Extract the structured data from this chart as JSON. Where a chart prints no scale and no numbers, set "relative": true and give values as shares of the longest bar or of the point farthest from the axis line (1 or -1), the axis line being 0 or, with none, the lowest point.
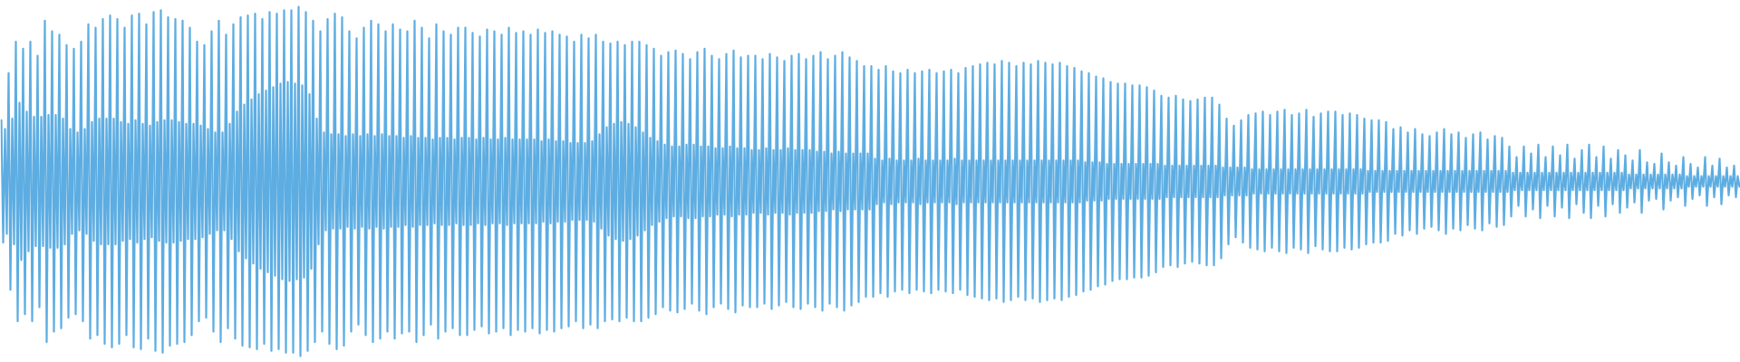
{
  "chart_data": {
    "type": "line",
    "relative": true,
    "color": "#5dade2",
    "categories": [
      null,
      null,
      null,
      null,
      null,
      null,
      null,
      null,
      null,
      null,
      null,
      null,
      null,
      null,
      null,
      null,
      null,
      null,
      null,
      null,
      null,
      null,
      null,
      null,
      null,
      null,
      null,
      null,
      null,
      null,
      null,
      null,
      null,
      null,
      null,
      null,
      null,
      null,
      null,
      null,
      null,
      null,
      null,
      null,
      null,
      null,
      null,
      null,
      null,
      null,
      null,
      null,
      null,
      null,
      null,
      null,
      null,
      null,
      null,
      null,
      null,
      null,
      null,
      null,
      null,
      null,
      null,
      null,
      null,
      null,
      null,
      null,
      null,
      null,
      null,
      null,
      null,
      null,
      null,
      null,
      null,
      null,
      null,
      null,
      null,
      null,
      null,
      null,
      null,
      null,
      null,
      null,
      null,
      null,
      null,
      null,
      null,
      null,
      null,
      null,
      null,
      null,
      null,
      null,
      null,
      null,
      null,
      null,
      null,
      null,
      null,
      null,
      null,
      null,
      null,
      null,
      null,
      null,
      null,
      null,
      null,
      null,
      null,
      null,
      null,
      null,
      null,
      null,
      null,
      null,
      null,
      null,
      null,
      null,
      null,
      null,
      null,
      null,
      null,
      null,
      null,
      null,
      null,
      null,
      null,
      null,
      null,
      null,
      null,
      null,
      null,
      null,
      null,
      null,
      null,
      null,
      null,
      null,
      null,
      null,
      null,
      null,
      null,
      null,
      null,
      null,
      null,
      null,
      null,
      null,
      null,
      null,
      null,
      null,
      null,
      null,
      null,
      null,
      null,
      null,
      null,
      null,
      null,
      null,
      null,
      null,
      null,
      null,
      null,
      null,
      null,
      null,
      null,
      null,
      null,
      null,
      null,
      null,
      null,
      null,
      null,
      null,
      null,
      null,
      null,
      null,
      null,
      null,
      null,
      null,
      null,
      null,
      null,
      null,
      null,
      null,
      null,
      null,
      null,
      null,
      null,
      null,
      null,
      null,
      null,
      null,
      null,
      null,
      null,
      null,
      null,
      null,
      null,
      null,
      null,
      null,
      null,
      null,
      null,
      null,
      null,
      null,
      null,
      null,
      null,
      null,
      null,
      null,
      null,
      null,
      null,
      null,
      null,
      null,
      null,
      null,
      null,
      null,
      null,
      null,
      null,
      null,
      null,
      null,
      null,
      null,
      null,
      null,
      null,
      null,
      null,
      null,
      null,
      null,
      null,
      null,
      null,
      null,
      null,
      null,
      null,
      null,
      null,
      null,
      null,
      null,
      null,
      null,
      null,
      null,
      null,
      null,
      null,
      null,
      null,
      null,
      null,
      null,
      null,
      null,
      null,
      null,
      null,
      null,
      null,
      null,
      null,
      null,
      null,
      null,
      null,
      null,
      null,
      null,
      null,
      null,
      null,
      null,
      null,
      null,
      null,
      null,
      null,
      null,
      null,
      null,
      null,
      null,
      null,
      null,
      null,
      null,
      null,
      null,
      null,
      null,
      null,
      null,
      null,
      null,
      null,
      null,
      null,
      null,
      null,
      null,
      null,
      null,
      null,
      null,
      null,
      null,
      null,
      null,
      null,
      null,
      null,
      null,
      null,
      null,
      null,
      null,
      null,
      null,
      null,
      null,
      null,
      null,
      null,
      null,
      null,
      null,
      null,
      null,
      null,
      null,
      null,
      null,
      null,
      null,
      null,
      null,
      null,
      null,
      null,
      null,
      null,
      null,
      null,
      null,
      null,
      null,
      null,
      null,
      null,
      null,
      null,
      null,
      null,
      null,
      null,
      null,
      null,
      null,
      null,
      null,
      null,
      null,
      null,
      null,
      null,
      null,
      null,
      null,
      null,
      null,
      null,
      null,
      null,
      null,
      null,
      null,
      null,
      null,
      null,
      null,
      null,
      null,
      null,
      null,
      null,
      null,
      null,
      null,
      null,
      null,
      null,
      null,
      null,
      null,
      null,
      null,
      null,
      null,
      null,
      null,
      null,
      null,
      null,
      null,
      null,
      null,
      null,
      null,
      null,
      null,
      null,
      null,
      null,
      null,
      null,
      null,
      null,
      null,
      null,
      null,
      null,
      null,
      null,
      null,
      null,
      null,
      null,
      null,
      null,
      null,
      null,
      null,
      null,
      null,
      null,
      null,
      null,
      null,
      null,
      null,
      null,
      null,
      null,
      null,
      null,
      null,
      null,
      null,
      null,
      null,
      null,
      null,
      null,
      null,
      null,
      null,
      null,
      null,
      null,
      null,
      null,
      null,
      null,
      null,
      null,
      null,
      null,
      null,
      null,
      null,
      null,
      null,
      null,
      null,
      null,
      null,
      null,
      null,
      null,
      null,
      null,
      null,
      null,
      null,
      null,
      null,
      null,
      null,
      null,
      null,
      null,
      null,
      null,
      null,
      null,
      null,
      null,
      null,
      null,
      null,
      null,
      null,
      null,
      null,
      null,
      null,
      null,
      null,
      null,
      null,
      null,
      null,
      null,
      null,
      null,
      null,
      null,
      null,
      null,
      null,
      null,
      null,
      null,
      null,
      null,
      null,
      null,
      null,
      null,
      null,
      null,
      null,
      null,
      null,
      null,
      null,
      null,
      null,
      null,
      null,
      null,
      null,
      null,
      null,
      null,
      null,
      null,
      null,
      null,
      null,
      null,
      null,
      null,
      null,
      null,
      null,
      null,
      null,
      null,
      null,
      null,
      null,
      null,
      null,
      null,
      null,
      null,
      null,
      null,
      null,
      null,
      null,
      null,
      null,
      null,
      null,
      null,
      null,
      null,
      null,
      null,
      null,
      null,
      null,
      null,
      null,
      null,
      null,
      null,
      null,
      null,
      null,
      null,
      null,
      null,
      null,
      null,
      null,
      null,
      null,
      null,
      null,
      null,
      null,
      null,
      null,
      null,
      null,
      null,
      null,
      null,
      null,
      null,
      null,
      null,
      null,
      null,
      null,
      null,
      null,
      null,
      null,
      null,
      null,
      null,
      null,
      null,
      null,
      null,
      null,
      null,
      null,
      null,
      null,
      null,
      null,
      null,
      null,
      null,
      null,
      null,
      null,
      null,
      null,
      null,
      null,
      null,
      null,
      null,
      null,
      null,
      null,
      null,
      null,
      null,
      null,
      null,
      null,
      null,
      null,
      null,
      null,
      null,
      null,
      null,
      null,
      null,
      null,
      null,
      null,
      null,
      null,
      null,
      null,
      null,
      null,
      null,
      null,
      null,
      null,
      null,
      null,
      null,
      null,
      null,
      null,
      null,
      null,
      null,
      null,
      null,
      null,
      null,
      null,
      null,
      null,
      null,
      null,
      null,
      null,
      null,
      null,
      null,
      null,
      null,
      null,
      null,
      null,
      null,
      null,
      null,
      null,
      null,
      null,
      null,
      null,
      null,
      null,
      null,
      null,
      null,
      null,
      null,
      null,
      null,
      null,
      null,
      null,
      null,
      null,
      null,
      null,
      null,
      null,
      null,
      null,
      null,
      null,
      null,
      null,
      null,
      null,
      null,
      null,
      null,
      null,
      null,
      null,
      null,
      null,
      null,
      null,
      null,
      null,
      null,
      null,
      null,
      null,
      null,
      null,
      null,
      null,
      null,
      null,
      null,
      null,
      null,
      null,
      null,
      null,
      null,
      null,
      null,
      null,
      null,
      null,
      null,
      null,
      null,
      null,
      null,
      null,
      null,
      null,
      null,
      null,
      null,
      null,
      null,
      null,
      null,
      null,
      null,
      null,
      null,
      null,
      null,
      null,
      null,
      null,
      null,
      null,
      null,
      null,
      null,
      null,
      null,
      null,
      null,
      null,
      null,
      null,
      null,
      null,
      null,
      null,
      null,
      null,
      null,
      null,
      null,
      null,
      null,
      null,
      null,
      null,
      null,
      null,
      null,
      null,
      null,
      null,
      null,
      null,
      null,
      null,
      null,
      null,
      null,
      null,
      null,
      null,
      null,
      null,
      null,
      null,
      null,
      null,
      null,
      null,
      null,
      null,
      null,
      null,
      null,
      null,
      null,
      null,
      null,
      null,
      null,
      null,
      null,
      null,
      null,
      null,
      null,
      null,
      null,
      null,
      null,
      null,
      null,
      null,
      null,
      null,
      null,
      null,
      null,
      null,
      null,
      null,
      null,
      null,
      null,
      null,
      null,
      null,
      null,
      null,
      null,
      null,
      null,
      null,
      null,
      null,
      null,
      null,
      null,
      null,
      null,
      null,
      null,
      null,
      null,
      null,
      null,
      null,
      null,
      null,
      null,
      null,
      null,
      null
    ],
    "values": [
      0.675,
      0.325,
      0.65,
      0.35,
      0.81,
      0.19,
      0.68,
      0.32,
      0.9,
      0.1,
      0.725,
      0.275,
      0.88,
      0.12,
      0.7,
      0.3,
      0.9,
      0.1,
      0.685,
      0.315,
      0.86,
      0.14,
      0.685,
      0.315,
      0.96,
      0.04,
      0.69,
      0.31,
      0.93,
      0.07,
      0.69,
      0.31,
      0.92,
      0.08,
      0.68,
      0.32,
      0.89,
      0.11,
      0.65,
      0.35,
      0.88,
      0.12,
      0.64,
      0.36,
      0.9,
      0.1,
      0.65,
      0.35,
      0.95,
      0.05,
      0.67,
      0.33,
      0.94,
      0.06,
      0.68,
      0.32,
      0.965,
      0.035,
      0.68,
      0.32,
      0.975,
      0.025,
      0.68,
      0.32,
      0.965,
      0.035,
      0.67,
      0.33,
      0.94,
      0.06,
      0.665,
      0.335,
      0.975,
      0.025,
      0.675,
      0.325,
      0.98,
      0.02,
      0.665,
      0.335,
      0.95,
      0.05,
      0.66,
      0.34,
      0.985,
      0.015,
      0.67,
      0.33,
      0.99,
      0.01,
      0.675,
      0.325,
      0.97,
      0.03,
      0.675,
      0.325,
      0.965,
      0.035,
      0.67,
      0.33,
      0.96,
      0.04,
      0.665,
      0.335,
      0.94,
      0.06,
      0.665,
      0.335,
      0.9,
      0.1,
      0.66,
      0.34,
      0.89,
      0.11,
      0.65,
      0.35,
      0.93,
      0.07,
      0.64,
      0.36,
      0.96,
      0.04,
      0.64,
      0.36,
      0.92,
      0.08,
      0.665,
      0.335,
      0.95,
      0.05,
      0.7,
      0.3,
      0.97,
      0.03,
      0.72,
      0.28,
      0.975,
      0.025,
      0.735,
      0.265,
      0.98,
      0.02,
      0.75,
      0.25,
      0.965,
      0.035,
      0.76,
      0.24,
      0.985,
      0.015,
      0.77,
      0.23,
      0.98,
      0.02,
      0.78,
      0.22,
      0.99,
      0.01,
      0.785,
      0.215,
      0.99,
      0.01,
      0.78,
      0.22,
      1,
      0,
      0.775,
      0.225,
      0.985,
      0.015,
      0.75,
      0.25,
      0.96,
      0.04,
      0.68,
      0.32,
      0.93,
      0.07,
      0.64,
      0.36,
      0.965,
      0.035,
      0.635,
      0.365,
      0.98,
      0.02,
      0.635,
      0.365,
      0.97,
      0.03,
      0.63,
      0.37,
      0.93,
      0.07,
      0.635,
      0.365,
      0.91,
      0.09,
      0.63,
      0.37,
      0.94,
      0.06,
      0.635,
      0.365,
      0.96,
      0.04,
      0.63,
      0.37,
      0.95,
      0.05,
      0.635,
      0.365,
      0.93,
      0.07,
      0.63,
      0.37,
      0.95,
      0.05,
      0.63,
      0.37,
      0.935,
      0.065,
      0.625,
      0.375,
      0.93,
      0.07,
      0.63,
      0.37,
      0.96,
      0.04,
      0.625,
      0.375,
      0.94,
      0.06,
      0.625,
      0.375,
      0.91,
      0.09,
      0.62,
      0.38,
      0.95,
      0.05,
      0.625,
      0.375,
      0.93,
      0.07,
      0.625,
      0.375,
      0.92,
      0.08,
      0.62,
      0.38,
      0.94,
      0.06,
      0.625,
      0.375,
      0.94,
      0.06,
      0.625,
      0.375,
      0.925,
      0.075,
      0.62,
      0.38,
      0.915,
      0.085,
      0.625,
      0.375,
      0.935,
      0.065,
      0.62,
      0.38,
      0.93,
      0.07,
      0.62,
      0.38,
      0.92,
      0.08,
      0.625,
      0.375,
      0.94,
      0.06,
      0.62,
      0.38,
      0.925,
      0.075,
      0.62,
      0.38,
      0.93,
      0.07,
      0.62,
      0.38,
      0.92,
      0.08,
      0.62,
      0.38,
      0.935,
      0.065,
      0.615,
      0.385,
      0.925,
      0.075,
      0.62,
      0.38,
      0.93,
      0.07,
      0.615,
      0.385,
      0.92,
      0.08,
      0.615,
      0.385,
      0.915,
      0.085,
      0.61,
      0.39,
      0.9,
      0.1,
      0.61,
      0.39,
      0.92,
      0.08,
      0.61,
      0.39,
      0.91,
      0.09,
      0.615,
      0.385,
      0.92,
      0.08,
      0.635,
      0.365,
      0.9,
      0.1,
      0.655,
      0.345,
      0.895,
      0.105,
      0.665,
      0.335,
      0.9,
      0.1,
      0.67,
      0.33,
      0.89,
      0.11,
      0.665,
      0.335,
      0.9,
      0.1,
      0.655,
      0.345,
      0.9,
      0.1,
      0.64,
      0.36,
      0.89,
      0.11,
      0.625,
      0.375,
      0.88,
      0.12,
      0.615,
      0.385,
      0.86,
      0.14,
      0.605,
      0.395,
      0.87,
      0.13,
      0.6,
      0.4,
      0.875,
      0.125,
      0.6,
      0.4,
      0.865,
      0.135,
      0.605,
      0.395,
      0.85,
      0.15,
      0.605,
      0.395,
      0.87,
      0.13,
      0.6,
      0.4,
      0.88,
      0.12,
      0.6,
      0.4,
      0.86,
      0.14,
      0.595,
      0.405,
      0.85,
      0.15,
      0.595,
      0.405,
      0.865,
      0.135,
      0.6,
      0.4,
      0.875,
      0.125,
      0.595,
      0.405,
      0.855,
      0.145,
      0.595,
      0.405,
      0.86,
      0.14,
      0.59,
      0.41,
      0.86,
      0.14,
      0.59,
      0.41,
      0.85,
      0.15,
      0.595,
      0.405,
      0.865,
      0.135,
      0.59,
      0.41,
      0.855,
      0.145,
      0.59,
      0.41,
      0.845,
      0.155,
      0.595,
      0.405,
      0.86,
      0.14,
      0.59,
      0.41,
      0.865,
      0.135,
      0.59,
      0.41,
      0.85,
      0.15,
      0.59,
      0.41,
      0.86,
      0.14,
      0.585,
      0.415,
      0.87,
      0.13,
      0.585,
      0.415,
      0.85,
      0.15,
      0.58,
      0.42,
      0.86,
      0.14,
      0.585,
      0.415,
      0.87,
      0.13,
      0.58,
      0.42,
      0.855,
      0.145,
      0.58,
      0.42,
      0.845,
      0.155,
      0.58,
      0.42,
      0.83,
      0.17,
      0.58,
      0.42,
      0.83,
      0.17,
      0.565,
      0.435,
      0.82,
      0.18,
      0.56,
      0.44,
      0.83,
      0.17,
      0.565,
      0.435,
      0.815,
      0.185,
      0.56,
      0.44,
      0.81,
      0.19,
      0.56,
      0.44,
      0.82,
      0.18,
      0.56,
      0.44,
      0.81,
      0.19,
      0.565,
      0.435,
      0.815,
      0.185,
      0.56,
      0.44,
      0.82,
      0.18,
      0.56,
      0.44,
      0.81,
      0.19,
      0.56,
      0.44,
      0.815,
      0.185,
      0.56,
      0.44,
      0.82,
      0.18,
      0.565,
      0.435,
      0.81,
      0.19,
      0.56,
      0.44,
      0.825,
      0.175,
      0.56,
      0.44,
      0.83,
      0.17,
      0.56,
      0.44,
      0.835,
      0.165,
      0.56,
      0.44,
      0.84,
      0.16,
      0.56,
      0.44,
      0.835,
      0.165,
      0.56,
      0.44,
      0.845,
      0.155,
      0.56,
      0.44,
      0.84,
      0.16,
      0.56,
      0.44,
      0.83,
      0.17,
      0.56,
      0.44,
      0.84,
      0.16,
      0.56,
      0.44,
      0.835,
      0.165,
      0.56,
      0.44,
      0.845,
      0.155,
      0.56,
      0.44,
      0.84,
      0.16,
      0.56,
      0.44,
      0.835,
      0.165,
      0.56,
      0.44,
      0.84,
      0.16,
      0.56,
      0.44,
      0.83,
      0.17,
      0.56,
      0.44,
      0.825,
      0.175,
      0.56,
      0.44,
      0.815,
      0.185,
      0.555,
      0.445,
      0.81,
      0.19,
      0.555,
      0.445,
      0.8,
      0.2,
      0.555,
      0.445,
      0.795,
      0.205,
      0.55,
      0.45,
      0.785,
      0.215,
      0.55,
      0.45,
      0.78,
      0.22,
      0.55,
      0.45,
      0.78,
      0.22,
      0.55,
      0.45,
      0.775,
      0.225,
      0.55,
      0.45,
      0.775,
      0.225,
      0.55,
      0.45,
      0.77,
      0.23,
      0.55,
      0.45,
      0.76,
      0.24,
      0.55,
      0.45,
      0.745,
      0.255,
      0.545,
      0.455,
      0.74,
      0.26,
      0.545,
      0.455,
      0.745,
      0.255,
      0.545,
      0.455,
      0.735,
      0.265,
      0.545,
      0.455,
      0.73,
      0.27,
      0.545,
      0.455,
      0.735,
      0.265,
      0.545,
      0.455,
      0.74,
      0.26,
      0.545,
      0.455,
      0.74,
      0.26,
      0.545,
      0.455,
      0.72,
      0.28,
      0.54,
      0.46,
      0.68,
      0.32,
      0.54,
      0.46,
      0.66,
      0.34,
      0.54,
      0.46,
      0.675,
      0.325,
      0.54,
      0.46,
      0.69,
      0.31,
      0.535,
      0.465,
      0.695,
      0.305,
      0.535,
      0.465,
      0.7,
      0.3,
      0.535,
      0.465,
      0.69,
      0.31,
      0.535,
      0.465,
      0.7,
      0.3,
      0.535,
      0.465,
      0.705,
      0.295,
      0.535,
      0.465,
      0.69,
      0.31,
      0.535,
      0.465,
      0.695,
      0.305,
      0.535,
      0.465,
      0.705,
      0.295,
      0.535,
      0.465,
      0.685,
      0.315,
      0.535,
      0.465,
      0.695,
      0.305,
      0.535,
      0.465,
      0.7,
      0.3,
      0.535,
      0.465,
      0.7,
      0.3,
      0.535,
      0.465,
      0.69,
      0.31,
      0.535,
      0.465,
      0.695,
      0.305,
      0.535,
      0.465,
      0.69,
      0.31,
      0.535,
      0.465,
      0.68,
      0.32,
      0.53,
      0.47,
      0.675,
      0.325,
      0.53,
      0.47,
      0.675,
      0.325,
      0.53,
      0.47,
      0.67,
      0.33,
      0.53,
      0.47,
      0.65,
      0.35,
      0.53,
      0.47,
      0.655,
      0.345,
      0.53,
      0.47,
      0.64,
      0.36,
      0.53,
      0.47,
      0.65,
      0.35,
      0.53,
      0.47,
      0.635,
      0.365,
      0.53,
      0.47,
      0.63,
      0.37,
      0.53,
      0.47,
      0.64,
      0.36,
      0.53,
      0.47,
      0.65,
      0.35,
      0.53,
      0.47,
      0.635,
      0.365,
      0.53,
      0.47,
      0.64,
      0.36,
      0.53,
      0.47,
      0.625,
      0.375,
      0.53,
      0.47,
      0.635,
      0.365,
      0.53,
      0.47,
      0.64,
      0.36,
      0.53,
      0.47,
      0.62,
      0.38,
      0.53,
      0.47,
      0.63,
      0.37,
      0.53,
      0.47,
      0.625,
      0.375,
      0.53,
      0.47,
      0.6,
      0.4,
      0.525,
      0.475,
      0.57,
      0.43,
      0.525,
      0.475,
      0.6,
      0.4,
      0.525,
      0.475,
      0.58,
      0.42,
      0.525,
      0.475,
      0.605,
      0.395,
      0.525,
      0.475,
      0.57,
      0.43,
      0.525,
      0.475,
      0.6,
      0.4,
      0.525,
      0.475,
      0.575,
      0.425,
      0.525,
      0.475,
      0.605,
      0.395,
      0.525,
      0.475,
      0.565,
      0.435,
      0.525,
      0.475,
      0.59,
      0.41,
      0.525,
      0.475,
      0.605,
      0.395,
      0.525,
      0.475,
      0.57,
      0.43,
      0.525,
      0.475,
      0.6,
      0.4,
      0.525,
      0.475,
      0.565,
      0.435,
      0.525,
      0.475,
      0.59,
      0.41,
      0.525,
      0.475,
      0.575,
      0.425,
      0.52,
      0.48,
      0.56,
      0.44,
      0.52,
      0.48,
      0.59,
      0.41,
      0.52,
      0.48,
      0.555,
      0.445,
      0.52,
      0.48,
      0.55,
      0.45,
      0.52,
      0.48,
      0.58,
      0.42,
      0.52,
      0.48,
      0.555,
      0.445,
      0.52,
      0.48,
      0.545,
      0.455,
      0.52,
      0.48,
      0.57,
      0.43,
      0.515,
      0.485,
      0.55,
      0.45,
      0.515,
      0.485,
      0.54,
      0.46,
      0.515,
      0.485,
      0.57,
      0.43,
      0.515,
      0.485,
      0.545,
      0.455,
      0.515,
      0.485,
      0.565,
      0.435,
      0.515,
      0.485,
      0.54,
      0.46,
      0.515,
      0.485,
      0.545,
      0.455,
      0.515,
      0.485
    ]
  }
}
